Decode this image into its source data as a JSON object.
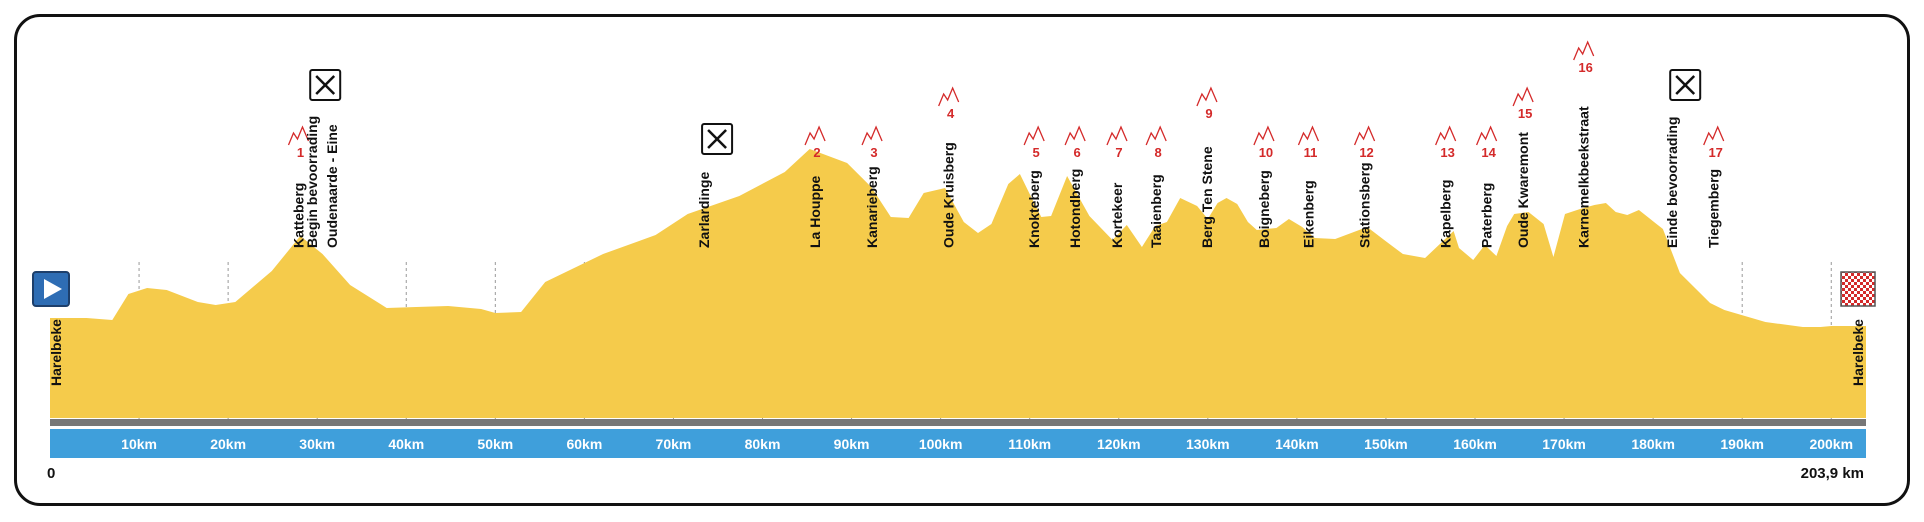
{
  "chart_data": {
    "type": "area",
    "title": "",
    "xlabel": "",
    "ylabel": "",
    "x_unit": "km",
    "xlim": [
      0,
      203.9
    ],
    "start_label": "0",
    "end_label": "203,9 km",
    "x_ticks": [
      {
        "km": 10,
        "label": "10km"
      },
      {
        "km": 20,
        "label": "20km"
      },
      {
        "km": 30,
        "label": "30km"
      },
      {
        "km": 40,
        "label": "40km"
      },
      {
        "km": 50,
        "label": "50km"
      },
      {
        "km": 60,
        "label": "60km"
      },
      {
        "km": 70,
        "label": "70km"
      },
      {
        "km": 80,
        "label": "80km"
      },
      {
        "km": 90,
        "label": "90km"
      },
      {
        "km": 100,
        "label": "100km"
      },
      {
        "km": 110,
        "label": "110km"
      },
      {
        "km": 120,
        "label": "120km"
      },
      {
        "km": 130,
        "label": "130km"
      },
      {
        "km": 140,
        "label": "140km"
      },
      {
        "km": 150,
        "label": "150km"
      },
      {
        "km": 160,
        "label": "160km"
      },
      {
        "km": 170,
        "label": "170km"
      },
      {
        "km": 180,
        "label": "180km"
      },
      {
        "km": 190,
        "label": "190km"
      },
      {
        "km": 200,
        "label": "200km"
      }
    ],
    "profile": {
      "x": [
        0,
        4.1,
        7.0,
        8.8,
        10.9,
        13.1,
        16.6,
        18.6,
        20.8,
        24.9,
        28.1,
        30.6,
        33.7,
        37.8,
        41.1,
        44.7,
        48.4,
        50.0,
        52.9,
        55.6,
        62.1,
        68.0,
        71.6,
        77.4,
        82.5,
        85.3,
        89.5,
        92.2,
        94.4,
        96.4,
        98.1,
        100.5,
        102.6,
        104.2,
        105.7,
        107.6,
        108.9,
        110.5,
        111.3,
        112.4,
        114.2,
        116.7,
        119.3,
        120.9,
        122.6,
        124.1,
        125.4,
        126.9,
        128.8,
        130.0,
        131.1,
        132.1,
        133.3,
        134.5,
        135.5,
        137.7,
        139.1,
        140.6,
        142.0,
        144.3,
        146.1,
        147.9,
        149.8,
        151.9,
        154.4,
        157.6,
        158.2,
        159.8,
        161.1,
        162.4,
        163.6,
        164.4,
        166.0,
        167.7,
        168.8,
        170.1,
        171.8,
        173.4,
        174.7,
        175.8,
        177.1,
        178.4,
        181.1,
        183.0,
        186.4,
        188.0,
        192.6,
        196.8,
        198.8,
        200.0,
        203.9
      ],
      "y": [
        100,
        100,
        98,
        124,
        130,
        128,
        116,
        113,
        116,
        147,
        182,
        164,
        133,
        110,
        111,
        112,
        109,
        105,
        106,
        136,
        164,
        183,
        204,
        222,
        246,
        269,
        255,
        231,
        201,
        200,
        225,
        230,
        196,
        185,
        194,
        234,
        244,
        215,
        201,
        202,
        242,
        202,
        178,
        193,
        171,
        192,
        196,
        220,
        212,
        199,
        215,
        220,
        214,
        196,
        188,
        190,
        199,
        191,
        180,
        179,
        185,
        191,
        178,
        164,
        160,
        187,
        170,
        158,
        173,
        162,
        192,
        204,
        206,
        194,
        161,
        204,
        209,
        213,
        215,
        206,
        203,
        208,
        189,
        145,
        115,
        108,
        96,
        91,
        91,
        92,
        92
      ],
      "scale": "elevation (unlabeled, relative)"
    },
    "climbs": [
      {
        "number": "1",
        "name": "Katteberg",
        "km": 27.9,
        "tier": 3
      },
      {
        "number": "2",
        "name": "La Houppe",
        "km": 85.9,
        "tier": 3
      },
      {
        "number": "3",
        "name": "Kanarieberg",
        "km": 92.3,
        "tier": 3
      },
      {
        "number": "4",
        "name": "Oude Kruisberg",
        "km": 100.9,
        "tier": 1
      },
      {
        "number": "5",
        "name": "Knokteberg",
        "km": 110.5,
        "tier": 3
      },
      {
        "number": "6",
        "name": "Hotondberg",
        "km": 115.1,
        "tier": 3
      },
      {
        "number": "7",
        "name": "Kortekeer",
        "km": 119.8,
        "tier": 3
      },
      {
        "number": "8",
        "name": "Taaienberg",
        "km": 124.2,
        "tier": 3
      },
      {
        "number": "9",
        "name": "Berg Ten Stene",
        "km": 129.9,
        "tier": 1
      },
      {
        "number": "10",
        "name": "Boigneberg",
        "km": 136.3,
        "tier": 3
      },
      {
        "number": "11",
        "name": "Eikenberg",
        "km": 141.3,
        "tier": 3
      },
      {
        "number": "12",
        "name": "Stationsberg",
        "km": 147.6,
        "tier": 3
      },
      {
        "number": "13",
        "name": "Kapelberg",
        "km": 156.7,
        "tier": 3
      },
      {
        "number": "14",
        "name": "Paterberg",
        "km": 161.3,
        "tier": 3
      },
      {
        "number": "15",
        "name": "Oude Kwaremont",
        "km": 165.4,
        "tier": 1
      },
      {
        "number": "16",
        "name": "Karnemelkbeekstraat",
        "km": 172.2,
        "tier": 0
      },
      {
        "number": "17",
        "name": "Tiegemberg",
        "km": 186.8,
        "tier": 3
      }
    ],
    "feed_zones": [
      {
        "km": 30.9,
        "lines": [
          "Begin bevoorrading",
          "Oudenaarde - Eine"
        ]
      },
      {
        "km": 74.9,
        "lines": [
          "Zarlardinge"
        ]
      },
      {
        "km": 183.6,
        "lines": [
          "Einde bevoorrading"
        ]
      }
    ],
    "feed_icons_km": [
      30.9,
      74.9,
      183.6
    ],
    "start": {
      "place": "Harelbeke",
      "km": 0
    },
    "finish": {
      "place": "Harelbeke",
      "km": 203.9
    },
    "colors": {
      "profile_fill": "#F5CB4B",
      "km_bar": "#3F9FDB",
      "road_bar": "#777777",
      "climb_number": "#D42A2A",
      "grid": "#999999",
      "start_icon": "#2E6DB4"
    }
  }
}
